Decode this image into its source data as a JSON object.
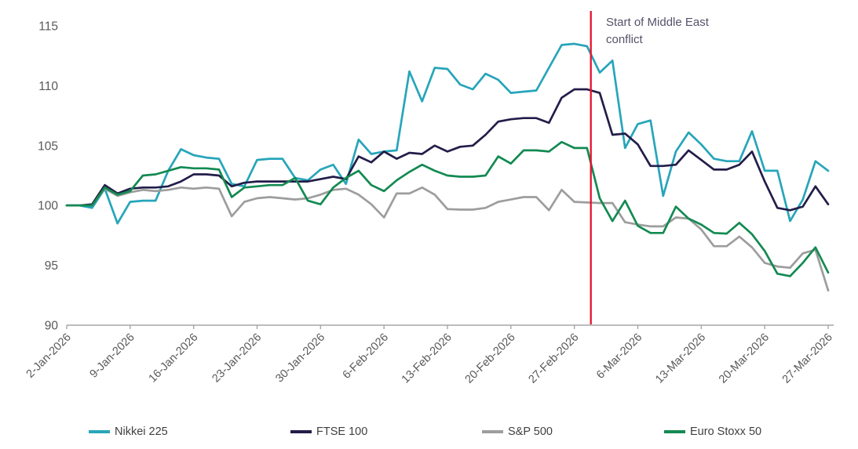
{
  "chart_data": {
    "type": "line",
    "title": "",
    "xlabel": "",
    "ylabel": "",
    "ylim": [
      90,
      115
    ],
    "y_ticks": [
      90,
      95,
      100,
      105,
      110,
      115
    ],
    "grid": false,
    "legend_position": "bottom",
    "axis_color": "#a6a6a6",
    "tick_label_color": "#595959",
    "x_tick_labels": [
      "2-Jan-2026",
      "9-Jan-2026",
      "16-Jan-2026",
      "23-Jan-2026",
      "30-Jan-2026",
      "6-Feb-2026",
      "13-Feb-2026",
      "20-Feb-2026",
      "27-Feb-2026",
      "6-Mar-2026",
      "13-Mar-2026",
      "20-Mar-2026",
      "27-Mar-2026"
    ],
    "x_dates": [
      "2-Jan-2026",
      "5-Jan-2026",
      "6-Jan-2026",
      "7-Jan-2026",
      "8-Jan-2026",
      "9-Jan-2026",
      "12-Jan-2026",
      "13-Jan-2026",
      "14-Jan-2026",
      "15-Jan-2026",
      "16-Jan-2026",
      "19-Jan-2026",
      "20-Jan-2026",
      "21-Jan-2026",
      "22-Jan-2026",
      "23-Jan-2026",
      "26-Jan-2026",
      "27-Jan-2026",
      "28-Jan-2026",
      "29-Jan-2026",
      "30-Jan-2026",
      "2-Feb-2026",
      "3-Feb-2026",
      "4-Feb-2026",
      "5-Feb-2026",
      "6-Feb-2026",
      "9-Feb-2026",
      "10-Feb-2026",
      "11-Feb-2026",
      "12-Feb-2026",
      "13-Feb-2026",
      "16-Feb-2026",
      "17-Feb-2026",
      "18-Feb-2026",
      "19-Feb-2026",
      "20-Feb-2026",
      "23-Feb-2026",
      "24-Feb-2026",
      "25-Feb-2026",
      "26-Feb-2026",
      "27-Feb-2026",
      "2-Mar-2026",
      "3-Mar-2026",
      "4-Mar-2026",
      "5-Mar-2026",
      "6-Mar-2026",
      "9-Mar-2026",
      "10-Mar-2026",
      "11-Mar-2026",
      "12-Mar-2026",
      "13-Mar-2026",
      "16-Mar-2026",
      "17-Mar-2026",
      "18-Mar-2026",
      "19-Mar-2026",
      "20-Mar-2026",
      "23-Mar-2026",
      "24-Mar-2026",
      "25-Mar-2026",
      "26-Mar-2026",
      "27-Mar-2026"
    ],
    "series": [
      {
        "name": "Nikkei 225",
        "color": "#27a5ba",
        "values": [
          100,
          100,
          99.8,
          101.4,
          98.5,
          100.3,
          100.4,
          100.4,
          102.9,
          104.7,
          104.2,
          104,
          103.9,
          101.8,
          101.6,
          103.8,
          103.9,
          103.9,
          102.3,
          102.1,
          103,
          103.4,
          101.8,
          105.5,
          104.3,
          104.5,
          104.6,
          111.2,
          108.7,
          111.5,
          111.4,
          110.1,
          109.7,
          111,
          110.5,
          109.4,
          109.5,
          109.6,
          111.5,
          113.4,
          113.5,
          113.3,
          111.1,
          112.1,
          104.8,
          106.8,
          107.1,
          100.8,
          104.5,
          106.1,
          105.1,
          103.9,
          103.7,
          103.7,
          106.2,
          102.9,
          102.9,
          98.7,
          100.5,
          103.7,
          102.9
        ]
      },
      {
        "name": "FTSE 100",
        "color": "#221d49",
        "values": [
          100,
          100,
          100.1,
          101.7,
          101,
          101.4,
          101.5,
          101.5,
          101.6,
          102,
          102.6,
          102.6,
          102.5,
          101.6,
          101.9,
          102,
          102,
          102,
          102,
          102,
          102.2,
          102.4,
          102.2,
          104.1,
          103.6,
          104.5,
          103.9,
          104.4,
          104.3,
          105,
          104.5,
          104.9,
          105,
          105.9,
          107,
          107.2,
          107.3,
          107.3,
          106.9,
          109,
          109.7,
          109.7,
          109.4,
          105.9,
          106,
          105.1,
          103.3,
          103.3,
          103.4,
          104.6,
          103.8,
          103,
          103,
          103.4,
          104.5,
          102,
          99.8,
          99.6,
          99.9,
          101.6,
          100.1
        ]
      },
      {
        "name": "S&P 500",
        "color": "#9d9d9d",
        "values": [
          100,
          100,
          100,
          101.4,
          100.8,
          101.1,
          101.3,
          101.2,
          101.3,
          101.5,
          101.4,
          101.5,
          101.4,
          99.1,
          100.3,
          100.6,
          100.7,
          100.6,
          100.5,
          100.6,
          100.9,
          101.3,
          101.4,
          100.9,
          100.1,
          99,
          101,
          101,
          101.5,
          100.9,
          99.7,
          99.65,
          99.65,
          99.8,
          100.3,
          100.5,
          100.7,
          100.7,
          99.6,
          101.3,
          100.3,
          100.25,
          100.2,
          100.2,
          98.6,
          98.4,
          98.25,
          98.25,
          99,
          98.9,
          98,
          96.6,
          96.6,
          97.4,
          96.5,
          95.2,
          94.9,
          94.8,
          96,
          96.3,
          92.9
        ]
      },
      {
        "name": "Euro Stoxx 50",
        "color": "#128a52",
        "values": [
          100,
          100,
          100,
          101.5,
          100.9,
          101.2,
          102.5,
          102.6,
          102.9,
          103.2,
          103.1,
          103.1,
          103,
          100.7,
          101.5,
          101.6,
          101.7,
          101.7,
          102.3,
          100.4,
          100.1,
          101.5,
          102.3,
          102.9,
          101.7,
          101.2,
          102.1,
          102.8,
          103.4,
          102.9,
          102.5,
          102.4,
          102.4,
          102.5,
          104.1,
          103.5,
          104.6,
          104.6,
          104.5,
          105.3,
          104.8,
          104.8,
          100.6,
          98.7,
          100.4,
          98.3,
          97.7,
          97.7,
          99.9,
          98.9,
          98.4,
          97.7,
          97.65,
          98.55,
          97.6,
          96.2,
          94.3,
          94.1,
          95.2,
          96.5,
          94.4
        ]
      }
    ],
    "annotation": {
      "text": "Start of Middle East conflict",
      "text_color": "#54536a",
      "line_color": "#e8112d",
      "line_x_index": 41.3
    }
  }
}
